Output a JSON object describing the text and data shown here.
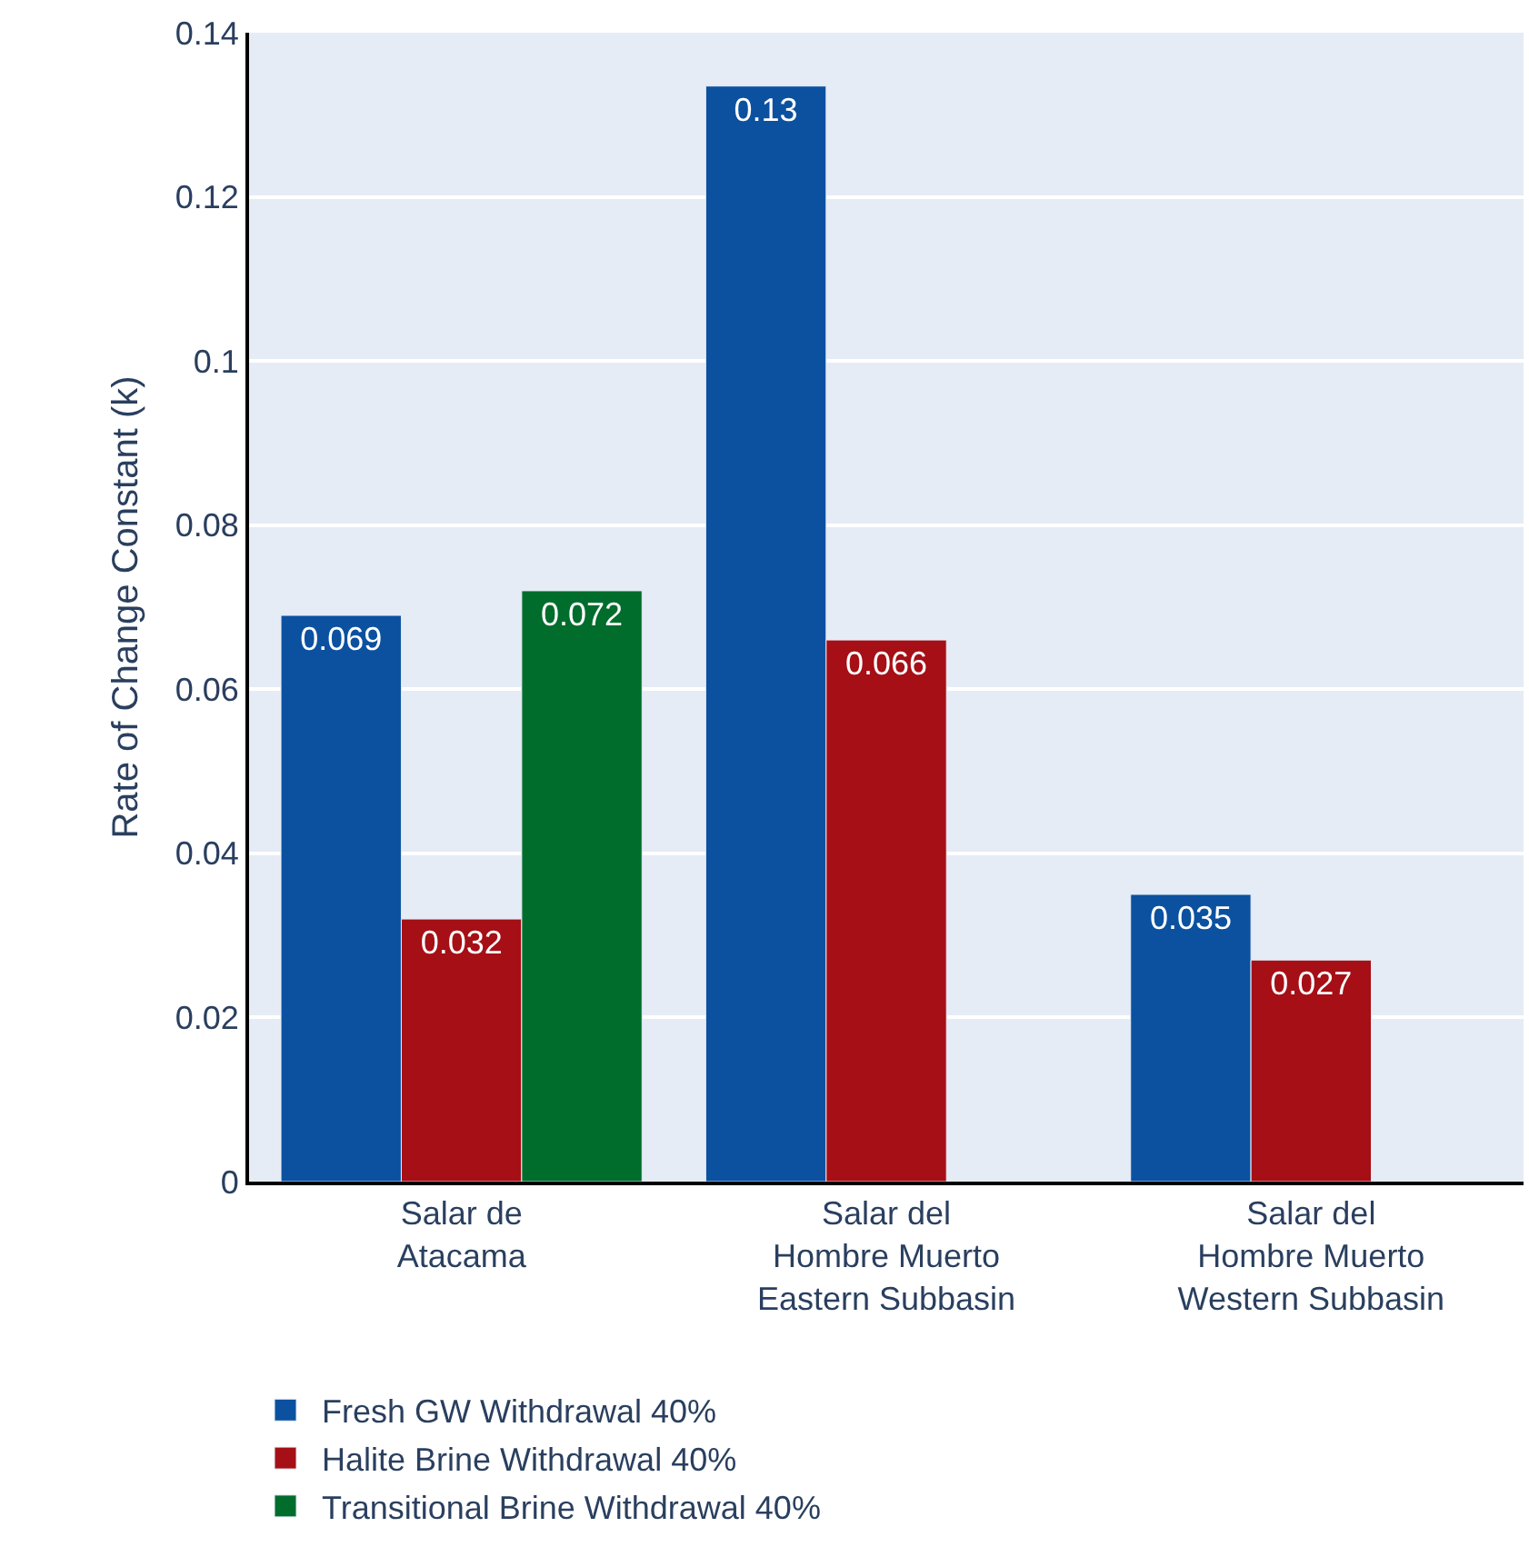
{
  "chart_data": {
    "type": "bar",
    "ylabel": "Rate of Change Constant (k)",
    "categories": [
      "Salar de\nAtacama",
      "Salar del\nHombre Muerto\nEastern Subbasin",
      "Salar del\nHombre Muerto\nWestern Subbasin"
    ],
    "series": [
      {
        "name": "Fresh GW Withdrawal 40%",
        "color": "#0b51a0",
        "values": [
          0.069,
          0.1335,
          0.035
        ],
        "value_labels": [
          "0.069",
          "0.13",
          "0.035"
        ]
      },
      {
        "name": "Halite Brine Withdrawal 40%",
        "color": "#a50f15",
        "values": [
          0.032,
          0.066,
          0.027
        ],
        "value_labels": [
          "0.032",
          "0.066",
          "0.027"
        ]
      },
      {
        "name": "Transitional Brine Withdrawal 40%",
        "color": "#006d2c",
        "values": [
          0.072,
          null,
          null
        ],
        "value_labels": [
          "0.072",
          null,
          null
        ]
      }
    ],
    "ylim": [
      0,
      0.14
    ],
    "yticks": [
      {
        "value": 0,
        "label": "0"
      },
      0.02,
      0.04,
      0.06,
      0.08,
      {
        "value": 0.1,
        "label": "0.1"
      },
      0.12,
      0.14
    ],
    "grid": "y",
    "legend": "bottom"
  }
}
